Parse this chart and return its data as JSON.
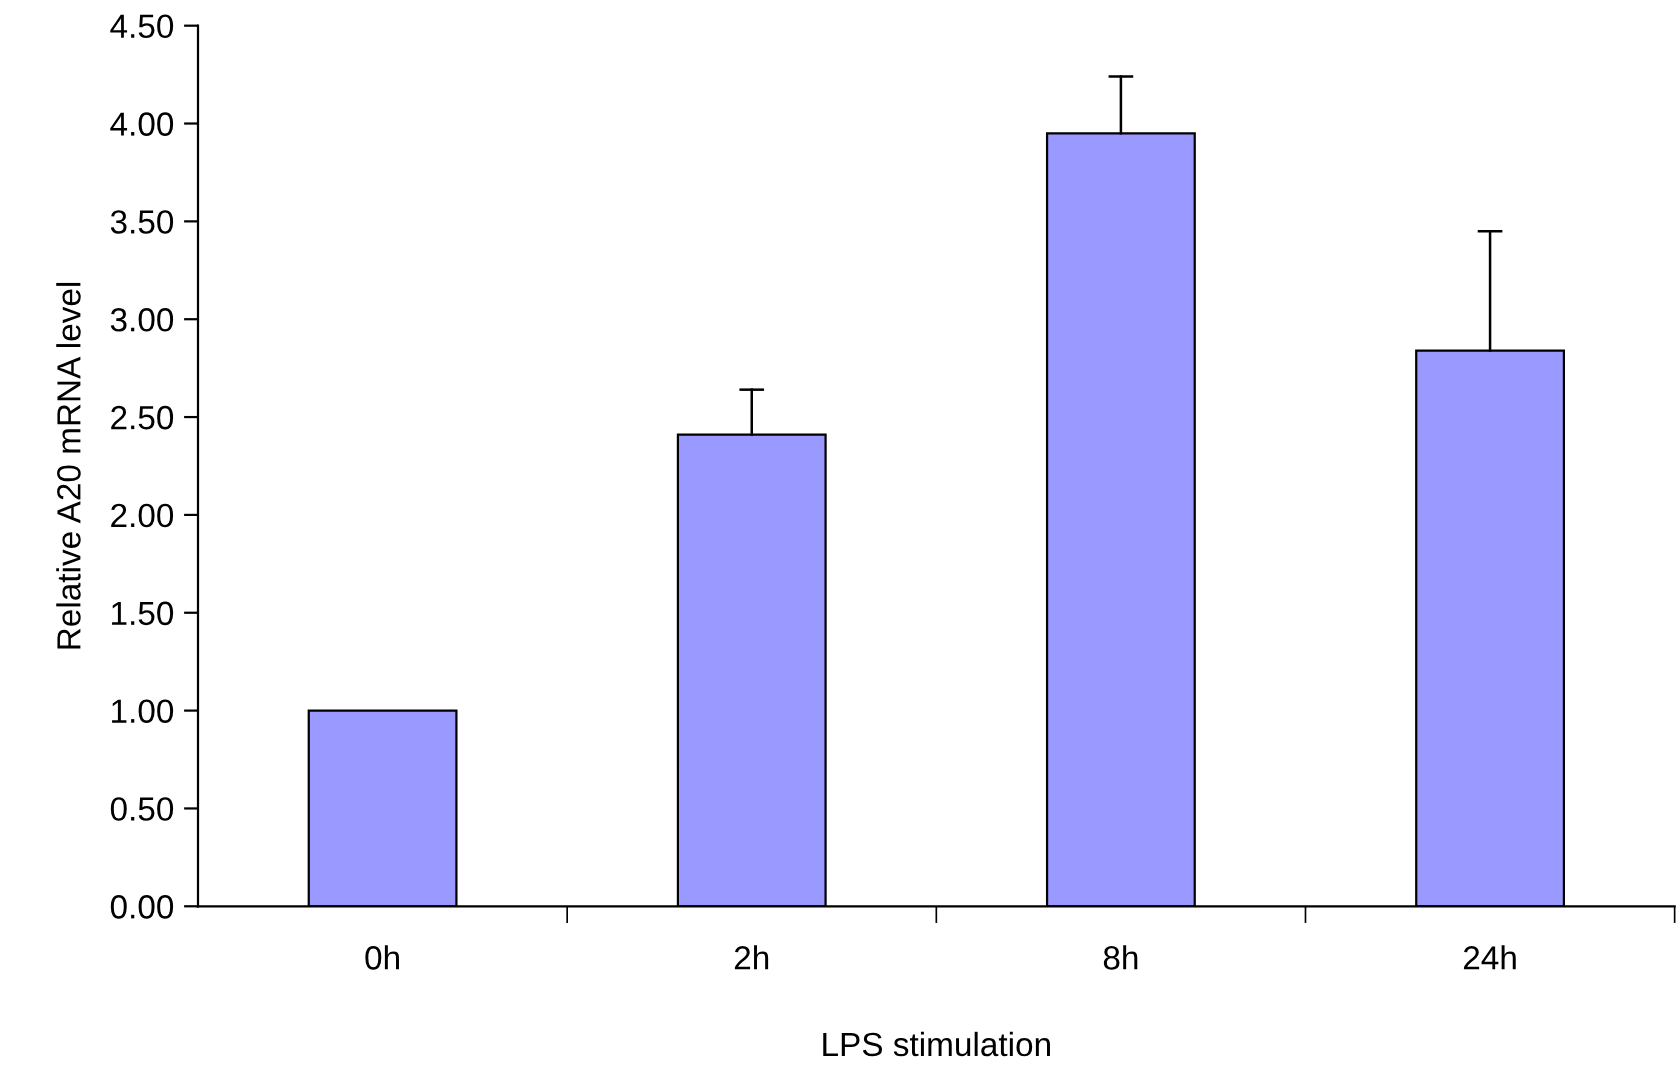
{
  "chart_data": {
    "type": "bar",
    "xlabel": "LPS stimulation",
    "ylabel": "Relative A20 mRNA level",
    "categories": [
      "0h",
      "2h",
      "8h",
      "24h"
    ],
    "values": [
      1.0,
      2.41,
      3.95,
      2.84
    ],
    "errors": [
      null,
      [
        2.41,
        2.64
      ],
      [
        3.95,
        4.24
      ],
      [
        2.84,
        3.45
      ]
    ],
    "color": "#9999ff",
    "ylim": [
      0,
      4.5
    ],
    "yticks": [
      {
        "value": 0,
        "label": "0.00"
      },
      {
        "value": 0.5,
        "label": "0.50"
      },
      {
        "value": 1,
        "label": "1.00"
      },
      {
        "value": 1.5,
        "label": "1.50"
      },
      {
        "value": 2,
        "label": "2.00"
      },
      {
        "value": 2.5,
        "label": "2.50"
      },
      {
        "value": 3,
        "label": "3.00"
      },
      {
        "value": 3.5,
        "label": "3.50"
      },
      {
        "value": 4,
        "label": "4.00"
      },
      {
        "value": 4.5,
        "label": "4.50"
      }
    ],
    "grid": false,
    "legend": false
  }
}
